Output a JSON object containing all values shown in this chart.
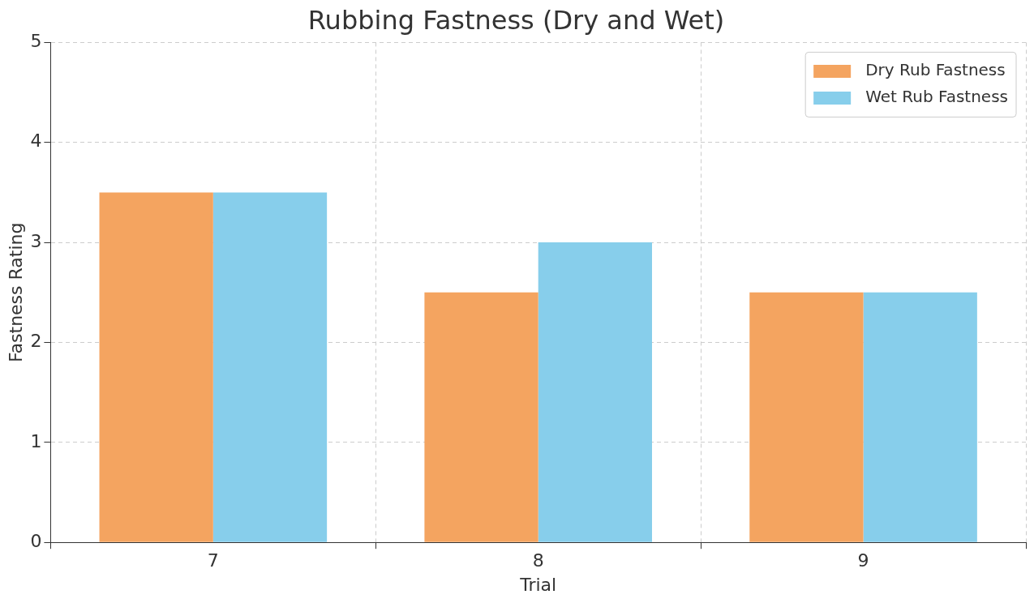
{
  "chart_data": {
    "type": "bar",
    "title": "Rubbing Fastness (Dry and Wet)",
    "xlabel": "Trial",
    "ylabel": "Fastness Rating",
    "categories": [
      "7",
      "8",
      "9"
    ],
    "series": [
      {
        "name": "Dry Rub Fastness",
        "color": "#f4a460",
        "values": [
          3.5,
          2.5,
          2.5
        ]
      },
      {
        "name": "Wet Rub Fastness",
        "color": "#87ceeb",
        "values": [
          3.5,
          3.0,
          2.5
        ]
      }
    ],
    "ylim": [
      0,
      5
    ],
    "yticks": [
      0,
      1,
      2,
      3,
      4,
      5
    ],
    "grid": true,
    "legend": "top right"
  }
}
